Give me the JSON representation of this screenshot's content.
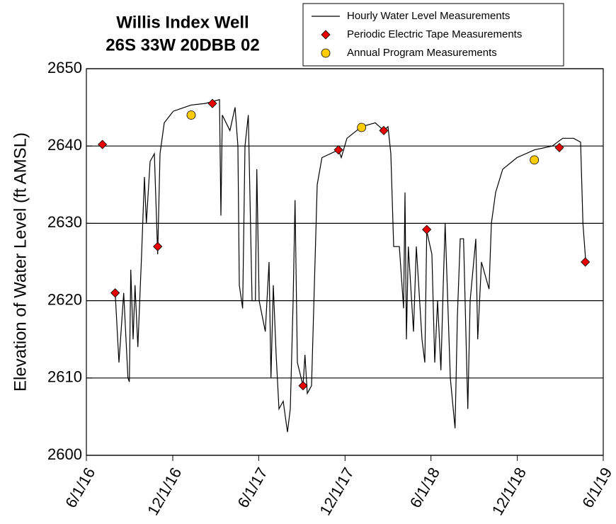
{
  "chart_data": {
    "type": "line",
    "title": "Willis Index Well",
    "subtitle": "26S 33W 20DBB 02",
    "y_label": "Elevation of Water Level (ft AMSL)",
    "xlim": [
      "2016-06-01",
      "2019-06-01"
    ],
    "xticks": [
      {
        "value": "2016-06-01",
        "label": "6/1/16"
      },
      {
        "value": "2016-12-01",
        "label": "12/1/16"
      },
      {
        "value": "2017-06-01",
        "label": "6/1/17"
      },
      {
        "value": "2017-12-01",
        "label": "12/1/17"
      },
      {
        "value": "2018-06-01",
        "label": "6/1/18"
      },
      {
        "value": "2018-12-01",
        "label": "12/1/18"
      },
      {
        "value": "2019-06-01",
        "label": "6/1/19"
      }
    ],
    "ylim": [
      2600,
      2650
    ],
    "yticks": [
      2600,
      2610,
      2620,
      2630,
      2640,
      2650
    ],
    "grid": true,
    "legend": "top-right",
    "series": [
      {
        "name": "Hourly Water Level Measurements",
        "type": "line",
        "color": "#000000",
        "x": [
          "2016-08-01",
          "2016-08-09",
          "2016-08-19",
          "2016-08-28",
          "2016-08-31",
          "2016-09-03",
          "2016-09-08",
          "2016-09-12",
          "2016-09-18",
          "2016-09-26",
          "2016-10-02",
          "2016-10-06",
          "2016-10-14",
          "2016-10-23",
          "2016-10-30",
          "2016-11-04",
          "2016-11-13",
          "2016-12-02",
          "2017-01-09",
          "2017-02-08",
          "2017-03-10",
          "2017-03-13",
          "2017-03-16",
          "2017-04-01",
          "2017-04-12",
          "2017-04-18",
          "2017-04-21",
          "2017-04-28",
          "2017-05-03",
          "2017-05-10",
          "2017-05-18",
          "2017-05-25",
          "2017-05-28",
          "2017-06-02",
          "2017-06-15",
          "2017-06-23",
          "2017-06-27",
          "2017-07-02",
          "2017-07-08",
          "2017-07-14",
          "2017-07-23",
          "2017-08-01",
          "2017-08-07",
          "2017-08-13",
          "2017-08-17",
          "2017-08-22",
          "2017-09-03",
          "2017-09-07",
          "2017-09-12",
          "2017-09-21",
          "2017-09-27",
          "2017-10-03",
          "2017-10-13",
          "2017-11-17",
          "2017-11-23",
          "2017-12-05",
          "2018-01-05",
          "2018-02-03",
          "2018-02-21",
          "2018-03-02",
          "2018-03-08",
          "2018-03-14",
          "2018-03-26",
          "2018-04-04",
          "2018-04-07",
          "2018-04-10",
          "2018-04-14",
          "2018-04-25",
          "2018-05-01",
          "2018-05-13",
          "2018-05-19",
          "2018-05-23",
          "2018-06-03",
          "2018-06-09",
          "2018-06-15",
          "2018-06-22",
          "2018-06-27",
          "2018-07-01",
          "2018-07-12",
          "2018-07-22",
          "2018-07-27",
          "2018-08-02",
          "2018-08-09",
          "2018-08-18",
          "2018-08-23",
          "2018-09-04",
          "2018-09-08",
          "2018-09-16",
          "2018-10-02",
          "2018-10-07",
          "2018-10-16",
          "2018-10-31",
          "2018-11-30",
          "2019-01-06",
          "2019-02-13",
          "2019-03-07",
          "2019-03-30",
          "2019-04-14",
          "2019-04-19",
          "2019-04-25"
        ],
        "values": [
          2621,
          2612,
          2621,
          2610,
          2609.5,
          2624,
          2615,
          2622,
          2614,
          2626,
          2636,
          2630,
          2638,
          2639,
          2626,
          2639,
          2643,
          2644.5,
          2645.3,
          2645.5,
          2646,
          2631,
          2644,
          2642,
          2645,
          2640,
          2622,
          2619,
          2640,
          2644,
          2620,
          2620,
          2637,
          2620,
          2616,
          2625,
          2610,
          2622,
          2613,
          2606,
          2607,
          2603,
          2606,
          2620,
          2633,
          2612,
          2609,
          2613,
          2608,
          2609,
          2622,
          2635,
          2638.5,
          2639.5,
          2638.5,
          2641,
          2642.5,
          2643,
          2642,
          2642.5,
          2639,
          2627,
          2627,
          2619,
          2634,
          2615,
          2627,
          2616,
          2627,
          2615,
          2612,
          2629,
          2626,
          2612,
          2620,
          2611,
          2622,
          2630,
          2610,
          2603.5,
          2618,
          2628,
          2628,
          2606,
          2620,
          2628,
          2615,
          2625,
          2621.5,
          2630,
          2634,
          2637,
          2638.5,
          2639.5,
          2640,
          2641,
          2641,
          2640.5,
          2630,
          2625
        ]
      },
      {
        "name": "Periodic Electric Tape Measurements",
        "type": "scatter",
        "marker": "diamond",
        "color": "#e60000",
        "x": [
          "2016-07-05",
          "2016-08-01",
          "2016-10-30",
          "2017-02-23",
          "2017-09-03",
          "2017-11-17",
          "2018-02-21",
          "2018-05-23",
          "2019-02-28",
          "2019-04-24"
        ],
        "values": [
          2640.2,
          2621,
          2627,
          2645.5,
          2609,
          2639.5,
          2642,
          2629.2,
          2639.8,
          2625
        ]
      },
      {
        "name": "Annual Program Measurements",
        "type": "scatter",
        "marker": "circle",
        "color": "#ffcc00",
        "x": [
          "2017-01-09",
          "2018-01-05",
          "2019-01-06"
        ],
        "values": [
          2644,
          2642.4,
          2638.2
        ]
      }
    ]
  }
}
